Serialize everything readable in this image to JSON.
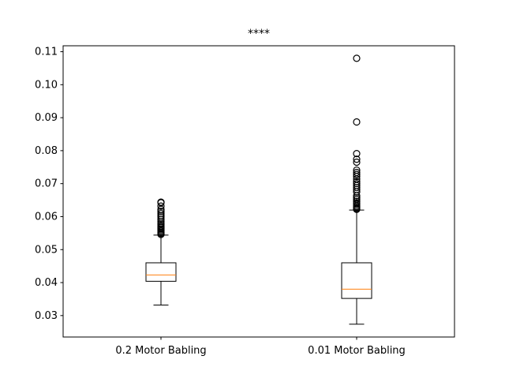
{
  "chart_data": {
    "type": "boxplot",
    "title": "****",
    "xlabel": "",
    "ylabel": "",
    "categories": [
      "0.2 Motor Babling",
      "0.01 Motor Babling"
    ],
    "ylim": [
      0.0235,
      0.1118
    ],
    "yticks": [
      "0.03",
      "0.04",
      "0.05",
      "0.06",
      "0.07",
      "0.08",
      "0.09",
      "0.10",
      "0.11"
    ],
    "grid": false,
    "legend": "none",
    "colors": {
      "box": "#000000",
      "median": "#ff7f0e",
      "background": "#ffffff"
    },
    "series": [
      {
        "whisker_low": 0.0332,
        "q1": 0.0404,
        "median": 0.0423,
        "q3": 0.046,
        "whisker_high": 0.0544,
        "outliers": [
          0.0546,
          0.0549,
          0.0552,
          0.0556,
          0.056,
          0.0563,
          0.0567,
          0.0571,
          0.0576,
          0.058,
          0.0586,
          0.0592,
          0.0599,
          0.0604,
          0.061,
          0.0616,
          0.0622,
          0.0632,
          0.0642,
          0.0644
        ]
      },
      {
        "whisker_low": 0.0274,
        "q1": 0.0352,
        "median": 0.038,
        "q3": 0.046,
        "whisker_high": 0.062,
        "outliers": [
          0.0622,
          0.0625,
          0.0628,
          0.0632,
          0.0637,
          0.0641,
          0.0646,
          0.0652,
          0.0657,
          0.0663,
          0.0675,
          0.0682,
          0.0688,
          0.0694,
          0.07,
          0.0706,
          0.0714,
          0.0722,
          0.0728,
          0.0734,
          0.0741,
          0.0765,
          0.0774,
          0.0791,
          0.0887,
          0.108
        ]
      }
    ]
  }
}
